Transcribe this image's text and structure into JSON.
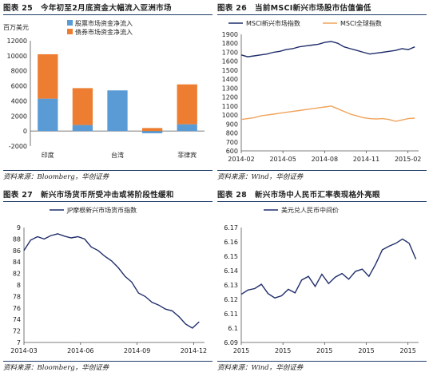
{
  "panels": [
    {
      "number": "图表 25",
      "title": "今年初至2月底资金大幅流入亚洲市场",
      "source": "资料来源：Bloomberg，华创证券"
    },
    {
      "number": "图表 26",
      "title": "当前MSCI新兴市场股市估值偏低",
      "source": "资料来源：Wind，华创证券"
    },
    {
      "number": "图表 27",
      "title": "新兴市场货币所受冲击或将阶段性缓和",
      "source": "资料来源：Bloomberg，华创证券"
    },
    {
      "number": "图表 28",
      "title": "新兴市场中人民币汇率表现格外亮眼",
      "source": "资料来源：Wind，华创证券"
    }
  ],
  "colors": {
    "stock_flow": "#5b9bd5",
    "bond_flow": "#ed7d31",
    "msci_em": "#1f2d6b",
    "msci_world": "#f0a35a",
    "line_dark": "#1f2d6b",
    "header_rule": "#1f3b66"
  },
  "chart_data": [
    {
      "type": "bar",
      "stacked": true,
      "unit_label": "百万美元",
      "categories": [
        "印度",
        "",
        "台湾",
        "",
        "菲律宾"
      ],
      "series": [
        {
          "name": "股票市场资金净流入",
          "values": [
            4300,
            800,
            5400,
            -300,
            900
          ]
        },
        {
          "name": "债券市场资金净流入",
          "values": [
            5900,
            4900,
            0,
            400,
            5300
          ]
        }
      ],
      "ylim": [
        -2000,
        12000
      ],
      "yticks": [
        -2000,
        0,
        2000,
        4000,
        6000,
        8000,
        10000,
        12000
      ],
      "legend": "top-left"
    },
    {
      "type": "line",
      "x_ticks": [
        "2014-02",
        "2014-05",
        "2014-08",
        "2014-11",
        "2015-02"
      ],
      "ylim": [
        600,
        1900
      ],
      "yticks": [
        600,
        700,
        800,
        900,
        1000,
        1100,
        1200,
        1300,
        1400,
        1500,
        1600,
        1700,
        1800,
        1900
      ],
      "legend": "top",
      "series": [
        {
          "name": "MSCI新兴市场指数",
          "x": [
            0,
            0.5,
            1,
            1.5,
            2,
            2.5,
            3,
            3.5,
            4,
            4.5,
            5,
            5.5,
            6,
            6.5,
            7,
            7.5,
            8,
            8.5,
            9,
            9.5,
            10,
            10.5,
            11,
            11.5,
            12,
            12.5,
            13,
            13.5
          ],
          "values": [
            1670,
            1650,
            1660,
            1670,
            1680,
            1700,
            1710,
            1730,
            1740,
            1760,
            1770,
            1780,
            1790,
            1810,
            1820,
            1800,
            1760,
            1740,
            1720,
            1700,
            1680,
            1690,
            1700,
            1710,
            1720,
            1740,
            1730,
            1760
          ]
        },
        {
          "name": "MSCI全球指数",
          "x": [
            0,
            0.5,
            1,
            1.5,
            2,
            2.5,
            3,
            3.5,
            4,
            4.5,
            5,
            5.5,
            6,
            6.5,
            7,
            7.5,
            8,
            8.5,
            9,
            9.5,
            10,
            10.5,
            11,
            11.5,
            12,
            12.5,
            13,
            13.5
          ],
          "values": [
            950,
            960,
            970,
            990,
            1000,
            1010,
            1020,
            1030,
            1040,
            1050,
            1060,
            1070,
            1080,
            1090,
            1100,
            1070,
            1040,
            1010,
            990,
            970,
            960,
            955,
            960,
            950,
            930,
            945,
            960,
            965
          ]
        }
      ]
    },
    {
      "type": "line",
      "x_ticks": [
        "2014-03",
        "2014-06",
        "2014-09",
        "2014-12"
      ],
      "ylim": [
        70,
        90
      ],
      "yticks": [
        70,
        72,
        74,
        76,
        78,
        80,
        82,
        84,
        86,
        88,
        90
      ],
      "legend": "top",
      "series": [
        {
          "name": "JP摩根新兴市场货币指数",
          "x": [
            0,
            0.5,
            1,
            1.5,
            2,
            2.5,
            3,
            3.5,
            4,
            4.5,
            5,
            5.5,
            6,
            6.5,
            7,
            7.5,
            8,
            8.5,
            9,
            9.5,
            10,
            10.5,
            11,
            11.5,
            12,
            12.5,
            13
          ],
          "values": [
            86.0,
            87.8,
            88.4,
            88.0,
            88.6,
            88.9,
            88.5,
            88.2,
            88.4,
            88.0,
            86.6,
            86.0,
            85.0,
            84.2,
            83.0,
            81.5,
            80.5,
            78.6,
            78.0,
            77.0,
            76.5,
            75.8,
            75.5,
            74.5,
            73.2,
            72.5,
            73.6
          ]
        }
      ]
    },
    {
      "type": "line",
      "x_ticks": [
        "2015",
        "2015",
        "2015",
        "2015",
        "2015"
      ],
      "ylim": [
        6.09,
        6.17
      ],
      "yticks": [
        6.09,
        6.1,
        6.11,
        6.12,
        6.13,
        6.14,
        6.15,
        6.16,
        6.17
      ],
      "legend": "top",
      "series": [
        {
          "name": "美元兑人民币中间价",
          "x": [
            0,
            0.5,
            1,
            1.5,
            2,
            2.5,
            3,
            3.5,
            4,
            4.5,
            5,
            5.5,
            6,
            6.5,
            7,
            7.5,
            8,
            8.5,
            9,
            9.5,
            10,
            10.5,
            11,
            11.5,
            12,
            12.5,
            13
          ],
          "values": [
            6.1235,
            6.1265,
            6.1275,
            6.1305,
            6.124,
            6.121,
            6.1225,
            6.127,
            6.1245,
            6.1335,
            6.136,
            6.129,
            6.1375,
            6.131,
            6.1355,
            6.138,
            6.134,
            6.1395,
            6.141,
            6.136,
            6.1445,
            6.1545,
            6.157,
            6.159,
            6.162,
            6.159,
            6.148
          ]
        }
      ]
    }
  ]
}
